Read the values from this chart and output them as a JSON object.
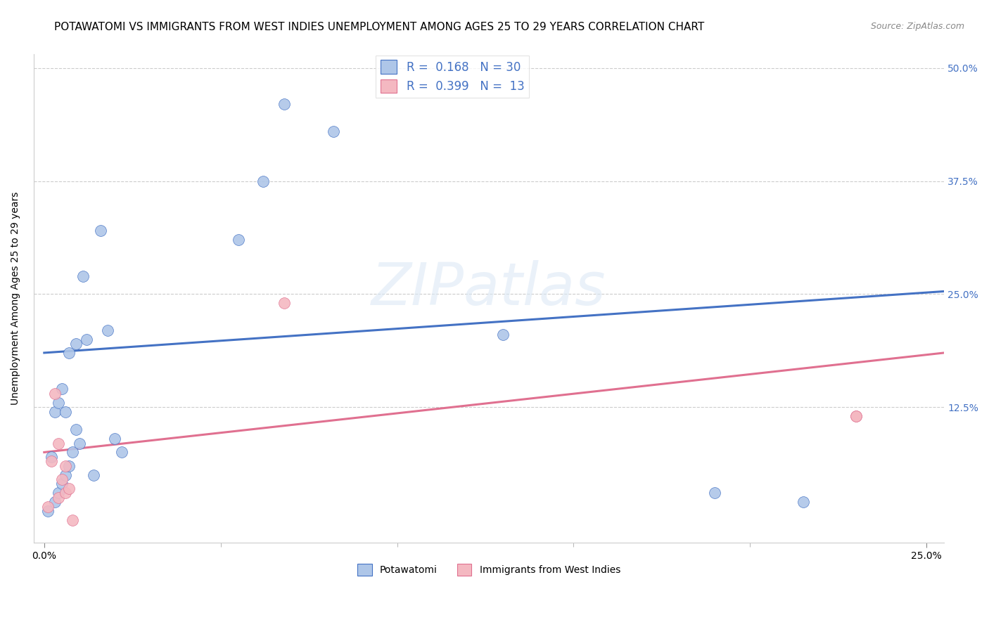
{
  "title": "POTAWATOMI VS IMMIGRANTS FROM WEST INDIES UNEMPLOYMENT AMONG AGES 25 TO 29 YEARS CORRELATION CHART",
  "source": "Source: ZipAtlas.com",
  "ylabel": "Unemployment Among Ages 25 to 29 years",
  "xlim": [
    -0.003,
    0.255
  ],
  "ylim": [
    -0.025,
    0.515
  ],
  "xticks": [
    0.0,
    0.25
  ],
  "xtick_labels": [
    "0.0%",
    "25.0%"
  ],
  "ytick_labels": [
    "12.5%",
    "25.0%",
    "37.5%",
    "50.0%"
  ],
  "yticks": [
    0.125,
    0.25,
    0.375,
    0.5
  ],
  "blue_scatter_x": [
    0.001,
    0.002,
    0.003,
    0.003,
    0.004,
    0.004,
    0.005,
    0.005,
    0.006,
    0.006,
    0.007,
    0.007,
    0.008,
    0.009,
    0.009,
    0.01,
    0.011,
    0.012,
    0.014,
    0.016,
    0.018,
    0.02,
    0.022,
    0.055,
    0.062,
    0.068,
    0.082,
    0.13,
    0.19,
    0.215
  ],
  "blue_scatter_y": [
    0.01,
    0.07,
    0.02,
    0.12,
    0.03,
    0.13,
    0.04,
    0.145,
    0.05,
    0.12,
    0.06,
    0.185,
    0.075,
    0.1,
    0.195,
    0.085,
    0.27,
    0.2,
    0.05,
    0.32,
    0.21,
    0.09,
    0.075,
    0.31,
    0.375,
    0.46,
    0.43,
    0.205,
    0.03,
    0.02
  ],
  "pink_scatter_x": [
    0.001,
    0.002,
    0.003,
    0.004,
    0.004,
    0.005,
    0.006,
    0.006,
    0.007,
    0.008,
    0.068,
    0.23,
    0.23
  ],
  "pink_scatter_y": [
    0.015,
    0.065,
    0.14,
    0.025,
    0.085,
    0.045,
    0.03,
    0.06,
    0.035,
    0.0,
    0.24,
    0.115,
    0.115
  ],
  "blue_line_x": [
    0.0,
    0.255
  ],
  "blue_line_y_start": 0.185,
  "blue_line_y_end": 0.253,
  "pink_line_x": [
    0.0,
    0.255
  ],
  "pink_line_y_start": 0.075,
  "pink_line_y_end": 0.185,
  "blue_color": "#aec6e8",
  "blue_line_color": "#4472c4",
  "pink_color": "#f4b8c1",
  "pink_line_color": "#e07090",
  "legend_blue_R": "0.168",
  "legend_blue_N": "30",
  "legend_pink_R": "0.399",
  "legend_pink_N": "13",
  "legend_label_blue": "Potawatomi",
  "legend_label_pink": "Immigrants from West Indies",
  "watermark": "ZIPatlas",
  "marker_size": 130,
  "title_fontsize": 11,
  "axis_label_fontsize": 10,
  "tick_fontsize": 10,
  "right_tick_color": "#4472c4"
}
